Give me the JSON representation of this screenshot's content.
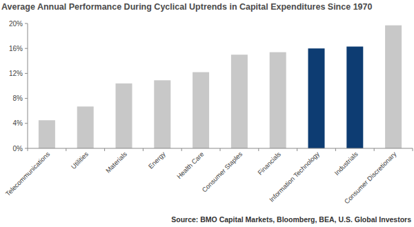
{
  "chart_data": {
    "type": "bar",
    "title": "Average Annual Performance During Cyclical Uptrends in Capital Expenditures Since 1970",
    "categories": [
      "Telecommunications",
      "Utilities",
      "Materials",
      "Energy",
      "Health Care",
      "Consumer Staples",
      "Financials",
      "Information Technology",
      "Industrials",
      "Consumer Discretionary"
    ],
    "values": [
      4.5,
      6.7,
      10.4,
      10.9,
      12.2,
      15.0,
      15.4,
      16.0,
      16.3,
      19.7
    ],
    "colors": [
      "#c8c8c8",
      "#c8c8c8",
      "#c8c8c8",
      "#c8c8c8",
      "#c8c8c8",
      "#c8c8c8",
      "#c8c8c8",
      "#0d3c72",
      "#0d3c72",
      "#c8c8c8"
    ],
    "ylim": [
      0,
      20
    ],
    "yticks": [
      {
        "value": 0,
        "label": "0%"
      },
      {
        "value": 4,
        "label": "4%"
      },
      {
        "value": 8,
        "label": "8%"
      },
      {
        "value": 12,
        "label": "12%"
      },
      {
        "value": 16,
        "label": "16%"
      },
      {
        "value": 20,
        "label": "20%"
      }
    ],
    "grid": false,
    "source": "Source: BMO Capital Markets, Bloomberg, BEA, U.S. Global Investors"
  }
}
